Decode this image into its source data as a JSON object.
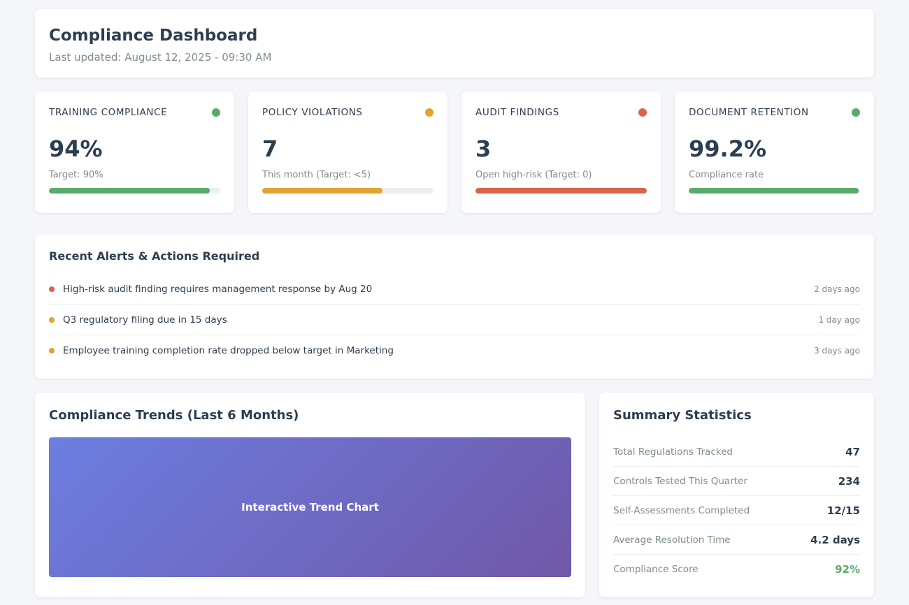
{
  "header": {
    "title": "Compliance Dashboard",
    "last_updated": "Last updated: August 12, 2025 - 09:30 AM"
  },
  "kpis": [
    {
      "title": "TRAINING COMPLIANCE",
      "value": "94%",
      "sub": "Target: 90%",
      "status_color": "#5aab6a",
      "progress": 0.94
    },
    {
      "title": "POLICY VIOLATIONS",
      "value": "7",
      "sub": "This month (Target: <5)",
      "status_color": "#e3a333",
      "progress": 0.7
    },
    {
      "title": "AUDIT FINDINGS",
      "value": "3",
      "sub": "Open high-risk (Target: 0)",
      "status_color": "#d9644a",
      "progress": 1.0
    },
    {
      "title": "DOCUMENT RETENTION",
      "value": "99.2%",
      "sub": "Compliance rate",
      "status_color": "#5aab6a",
      "progress": 0.992
    }
  ],
  "alerts": {
    "title": "Recent Alerts & Actions Required",
    "items": [
      {
        "text": "High-risk audit finding requires management response by Aug 20",
        "time": "2 days ago",
        "color": "#d9644a"
      },
      {
        "text": "Q3 regulatory filing due in 15 days",
        "time": "1 day ago",
        "color": "#e3a333"
      },
      {
        "text": "Employee training completion rate dropped below target in Marketing",
        "time": "3 days ago",
        "color": "#e3a333"
      }
    ]
  },
  "trends": {
    "title": "Compliance Trends (Last 6 Months)",
    "chart_label": "Interactive Trend Chart"
  },
  "stats": {
    "title": "Summary Statistics",
    "items": [
      {
        "label": "Total Regulations Tracked",
        "value": "47"
      },
      {
        "label": "Controls Tested This Quarter",
        "value": "234"
      },
      {
        "label": "Self-Assessments Completed",
        "value": "12/15"
      },
      {
        "label": "Average Resolution Time",
        "value": "4.2 days"
      },
      {
        "label": "Compliance Score",
        "value": "92%",
        "color": "#5aab6a"
      }
    ]
  }
}
